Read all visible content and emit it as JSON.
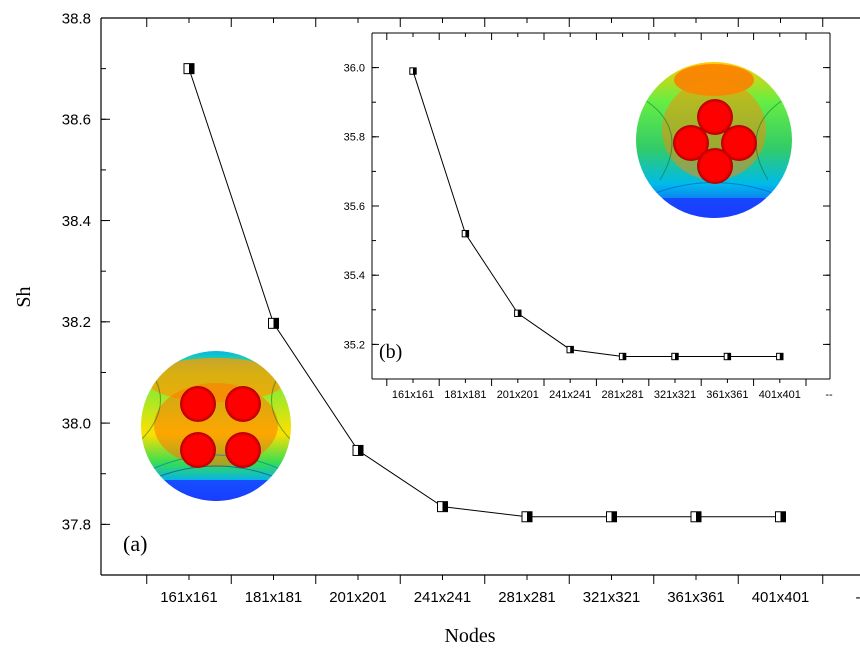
{
  "chart_data": [
    {
      "id": "main",
      "type": "line",
      "panel_label": "(a)",
      "xlabel": "Nodes",
      "ylabel": "Sh",
      "categories": [
        "161x161",
        "181x181",
        "201x201",
        "241x241",
        "281x281",
        "321x321",
        "361x361",
        "401x401"
      ],
      "extra_tick_label": "-",
      "series": [
        {
          "values": [
            38.7,
            38.197,
            37.946,
            37.835,
            37.815,
            37.815,
            37.815,
            37.815
          ]
        }
      ],
      "ylim": [
        37.7,
        38.8
      ],
      "yticks": [
        "37.8",
        "38.0",
        "38.2",
        "38.4",
        "38.6",
        "38.8"
      ],
      "grid": false,
      "marker": "half-filled-square"
    },
    {
      "id": "inset",
      "type": "line",
      "panel_label": "(b)",
      "categories": [
        "161x161",
        "181x181",
        "201x201",
        "241x241",
        "281x281",
        "321x321",
        "361x361",
        "401x401"
      ],
      "extra_tick_label": "--",
      "series": [
        {
          "values": [
            35.99,
            35.52,
            35.29,
            35.185,
            35.165,
            35.165,
            35.165,
            35.165
          ]
        }
      ],
      "ylim": [
        35.1,
        36.1
      ],
      "yticks": [
        "35.2",
        "35.4",
        "35.6",
        "35.8",
        "36.0"
      ],
      "grid": false,
      "marker": "half-filled-square"
    }
  ],
  "thumbnails": {
    "a": {
      "description_icon": "contour-disk-four-cylinders-icon",
      "colors": [
        "#1a3cff",
        "#00bfff",
        "#33ff66",
        "#ffff00",
        "#ff8800",
        "#ff0000"
      ]
    },
    "b": {
      "description_icon": "contour-disk-cluster-icon",
      "colors": [
        "#1a3cff",
        "#00bfff",
        "#33ff66",
        "#ffff00",
        "#ff8800",
        "#ff0000"
      ]
    }
  }
}
